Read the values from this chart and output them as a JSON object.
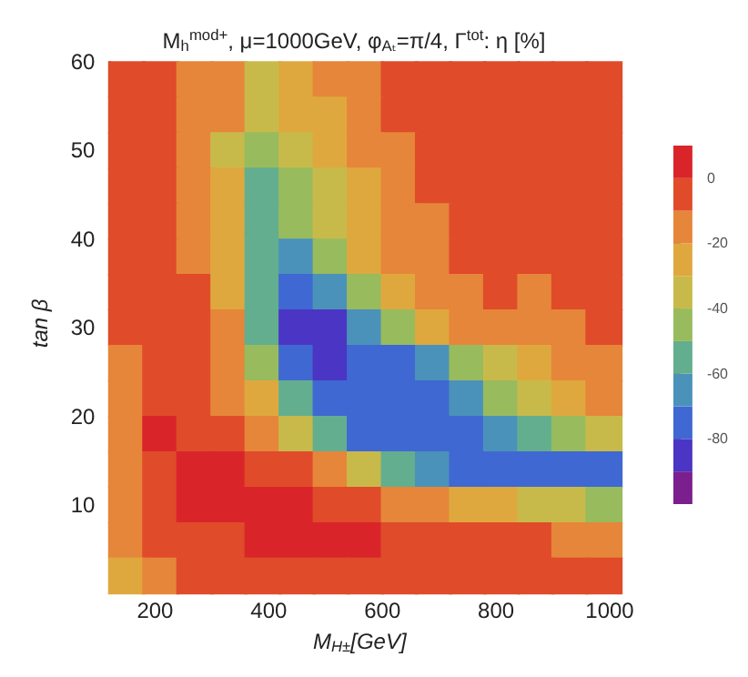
{
  "chart_data": {
    "type": "scatter",
    "title": "M$_{h}$$^{mod+}$, μ=1000GeV, φ$_{Aₜ}$=π/4, Γ$^{tot}$: η [%]",
    "xlabel": "M$_{H±}$[GeV]",
    "ylabel": "tan β",
    "marker": "square",
    "xlim": [
      120,
      1000
    ],
    "ylim": [
      1,
      60
    ],
    "xticks": [
      200,
      400,
      600,
      800,
      1000
    ],
    "yticks": [
      10,
      20,
      30,
      40,
      50,
      60
    ],
    "clim": [
      -100,
      10
    ],
    "cticks": [
      0,
      -20,
      -40,
      -60,
      -80
    ],
    "x": [
      150,
      210,
      270,
      330,
      390,
      450,
      510,
      570,
      630,
      690,
      750,
      810,
      870,
      930,
      990,
      150,
      210,
      270,
      330,
      390,
      450,
      510,
      570,
      630,
      690,
      750,
      810,
      870,
      930,
      990,
      150,
      210,
      270,
      330,
      390,
      450,
      510,
      570,
      630,
      690,
      750,
      810,
      870,
      930,
      990,
      150,
      210,
      270,
      330,
      390,
      450,
      510,
      570,
      630,
      690,
      750,
      810,
      870,
      930,
      990,
      150,
      210,
      270,
      330,
      390,
      450,
      510,
      570,
      630,
      690,
      750,
      810,
      870,
      930,
      990,
      150,
      210,
      270,
      330,
      390,
      450,
      510,
      570,
      630,
      690,
      750,
      810,
      870,
      930,
      990,
      150,
      210,
      270,
      330,
      390,
      450,
      510,
      570,
      630,
      690,
      750,
      810,
      870,
      930,
      990,
      150,
      210,
      270,
      330,
      390,
      450,
      510,
      570,
      630,
      690,
      750,
      810,
      870,
      930,
      990,
      150,
      210,
      270,
      330,
      390,
      450,
      510,
      570,
      630,
      690,
      750,
      810,
      870,
      930,
      990,
      150,
      210,
      270,
      330,
      390,
      450,
      510,
      570,
      630,
      690,
      750,
      810,
      870,
      930,
      990,
      150,
      210,
      270,
      330,
      390,
      450,
      510,
      570,
      630,
      690,
      750,
      810,
      870,
      930,
      990,
      150,
      210,
      270,
      330,
      390,
      450,
      510,
      570,
      630,
      690,
      750,
      810,
      870,
      930,
      990,
      150,
      210,
      270,
      330,
      390,
      450,
      510,
      570,
      630,
      690,
      750,
      810,
      870,
      930,
      990,
      150,
      210,
      270,
      330,
      390,
      450,
      510,
      570,
      630,
      690,
      750,
      810,
      870,
      930,
      990,
      150,
      210,
      270,
      330,
      390,
      450,
      510,
      570,
      630,
      690,
      750,
      810,
      870,
      930,
      990
    ],
    "values": [
      58,
      58,
      58,
      58,
      58,
      58,
      58,
      58,
      58,
      58,
      58,
      58,
      58,
      58,
      58,
      54,
      54,
      54,
      54,
      54,
      54,
      54,
      54,
      54,
      54,
      54,
      54,
      54,
      54,
      54,
      50,
      50,
      50,
      50,
      50,
      50,
      50,
      50,
      50,
      50,
      50,
      50,
      50,
      50,
      50,
      46,
      46,
      46,
      46,
      46,
      46,
      46,
      46,
      46,
      46,
      46,
      46,
      46,
      46,
      46,
      42,
      42,
      42,
      42,
      42,
      42,
      42,
      42,
      42,
      42,
      42,
      42,
      42,
      42,
      42,
      38,
      38,
      38,
      38,
      38,
      38,
      38,
      38,
      38,
      38,
      38,
      38,
      38,
      38,
      38,
      34,
      34,
      34,
      34,
      34,
      34,
      34,
      34,
      34,
      34,
      34,
      34,
      34,
      34,
      34,
      30,
      30,
      30,
      30,
      30,
      30,
      30,
      30,
      30,
      30,
      30,
      30,
      30,
      30,
      30,
      26,
      26,
      26,
      26,
      26,
      26,
      26,
      26,
      26,
      26,
      26,
      26,
      26,
      26,
      26,
      22,
      22,
      22,
      22,
      22,
      22,
      22,
      22,
      22,
      22,
      22,
      22,
      22,
      22,
      22,
      18,
      18,
      18,
      18,
      18,
      18,
      18,
      18,
      18,
      18,
      18,
      18,
      18,
      18,
      18,
      14,
      14,
      14,
      14,
      14,
      14,
      14,
      14,
      14,
      14,
      14,
      14,
      14,
      14,
      14,
      10,
      10,
      10,
      10,
      10,
      10,
      10,
      10,
      10,
      10,
      10,
      10,
      10,
      10,
      10,
      6,
      6,
      6,
      6,
      6,
      6,
      6,
      6,
      6,
      6,
      6,
      6,
      6,
      6,
      6,
      2,
      2,
      2,
      2,
      2,
      2,
      2,
      2,
      2,
      2,
      2,
      2,
      2,
      2,
      2
    ],
    "cvalues": [
      -5,
      -5,
      -15,
      -15,
      -35,
      -25,
      -15,
      -15,
      -5,
      -5,
      -5,
      -5,
      -5,
      -5,
      -5,
      -5,
      -5,
      -15,
      -15,
      -35,
      -25,
      -25,
      -15,
      -5,
      -5,
      -5,
      -5,
      -5,
      -5,
      -5,
      -5,
      -5,
      -15,
      -35,
      -45,
      -35,
      -25,
      -15,
      -15,
      -5,
      -5,
      -5,
      -5,
      -5,
      -5,
      -5,
      -5,
      -15,
      -25,
      -55,
      -45,
      -35,
      -25,
      -15,
      -5,
      -5,
      -5,
      -5,
      -5,
      -5,
      -5,
      -5,
      -15,
      -25,
      -55,
      -45,
      -35,
      -25,
      -15,
      -15,
      -5,
      -5,
      -5,
      -5,
      -5,
      -5,
      -5,
      -15,
      -25,
      -55,
      -65,
      -45,
      -25,
      -15,
      -15,
      -5,
      -5,
      -5,
      -5,
      -5,
      -5,
      -5,
      -5,
      -25,
      -55,
      -75,
      -65,
      -45,
      -25,
      -15,
      -15,
      -5,
      -15,
      -5,
      -5,
      -5,
      -5,
      -5,
      -15,
      -55,
      -85,
      -85,
      -65,
      -45,
      -25,
      -15,
      -15,
      -15,
      -15,
      -5,
      -15,
      -5,
      -5,
      -15,
      -45,
      -75,
      -85,
      -75,
      -75,
      -65,
      -45,
      -35,
      -25,
      -15,
      -15,
      -15,
      -5,
      -5,
      -15,
      -25,
      -55,
      -75,
      -75,
      -75,
      -75,
      -65,
      -45,
      -35,
      -25,
      -15,
      -15,
      5,
      -5,
      -5,
      -15,
      -35,
      -55,
      -75,
      -75,
      -75,
      -75,
      -65,
      -55,
      -45,
      -35,
      -15,
      -5,
      5,
      5,
      -5,
      -5,
      -15,
      -35,
      -55,
      -65,
      -75,
      -75,
      -75,
      -75,
      -75,
      -15,
      -5,
      5,
      5,
      5,
      5,
      -5,
      -5,
      -15,
      -15,
      -25,
      -25,
      -35,
      -35,
      -45,
      -15,
      -5,
      -5,
      -5,
      5,
      5,
      5,
      5,
      -5,
      -5,
      -5,
      -5,
      -5,
      -15,
      -15,
      -25,
      -15,
      -5,
      -5,
      -5,
      -5,
      -5,
      -5,
      -5,
      -5,
      -5,
      -5,
      -5,
      -5,
      -5
    ]
  }
}
